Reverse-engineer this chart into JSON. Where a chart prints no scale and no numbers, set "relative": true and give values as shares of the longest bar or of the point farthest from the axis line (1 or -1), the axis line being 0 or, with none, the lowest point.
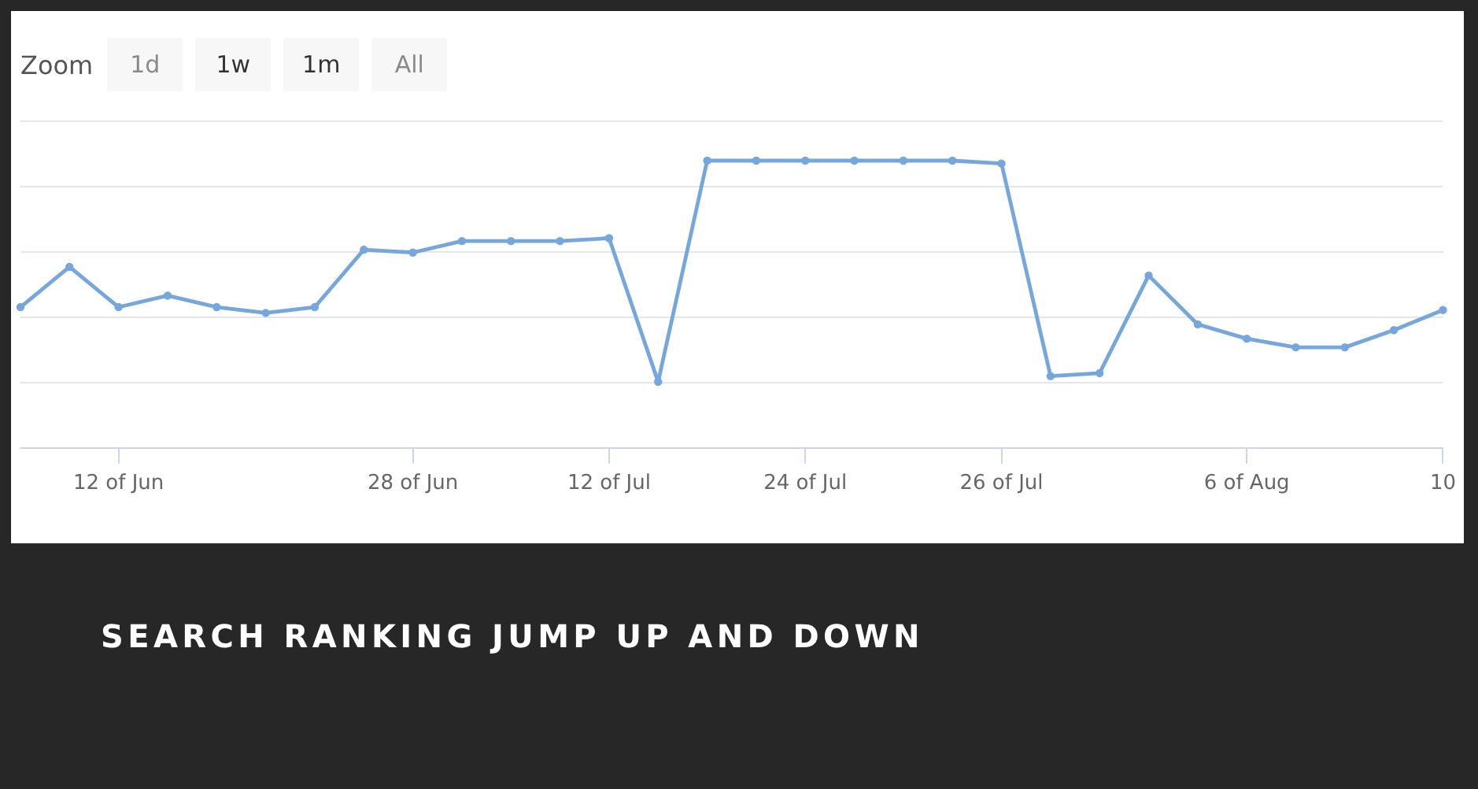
{
  "chart_data": {
    "type": "line",
    "title": "SEARCH RANKING JUMP UP AND DOWN",
    "annotations": [
      "Zoom",
      "1d",
      "1w",
      "1m",
      "All"
    ],
    "categories": [
      null,
      null,
      "12 of Jun",
      null,
      null,
      null,
      null,
      null,
      "28 of Jun",
      null,
      null,
      null,
      "12 of Jul",
      null,
      null,
      null,
      "24 of Jul",
      null,
      null,
      null,
      "26 of Jul",
      null,
      null,
      null,
      null,
      "6 of Aug",
      null,
      null,
      null,
      "10"
    ],
    "values": [
      0.49,
      0.63,
      0.49,
      0.53,
      0.49,
      0.47,
      0.49,
      0.69,
      0.68,
      0.72,
      0.72,
      0.72,
      0.73,
      0.23,
      1,
      1,
      1,
      1,
      1,
      1,
      0.99,
      0.25,
      0.26,
      0.6,
      0.43,
      0.38,
      0.35,
      0.35,
      0.41,
      0.48
    ],
    "color": "#75a6dc",
    "relative": true,
    "grid": "y",
    "marker": "circle",
    "line_style": "solid"
  }
}
